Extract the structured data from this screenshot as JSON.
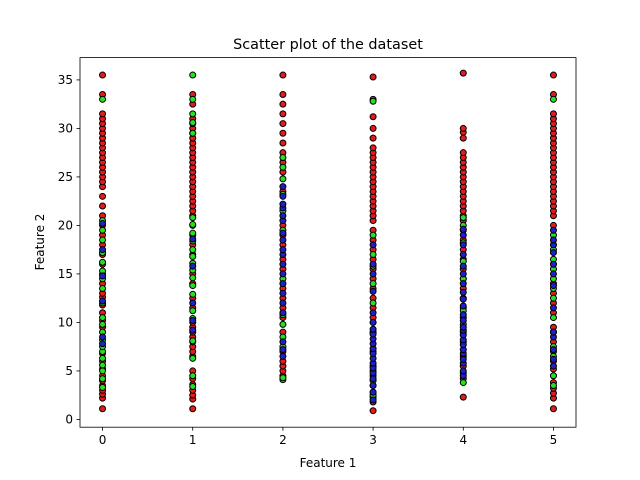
{
  "chart_data": {
    "type": "scatter",
    "title": "Scatter plot of the dataset",
    "xlabel": "Feature 1",
    "ylabel": "Feature 2",
    "xlim": [
      -0.25,
      5.25
    ],
    "ylim": [
      -0.8,
      37.3
    ],
    "xticks": [
      0,
      1,
      2,
      3,
      4,
      5
    ],
    "yticks": [
      0,
      5,
      10,
      15,
      20,
      25,
      30,
      35
    ],
    "grid": false,
    "legend": "none",
    "colors": {
      "red": "#e41a1c",
      "green": "#22e022",
      "blue": "#1f1fc8"
    },
    "groups": [
      {
        "x": 0,
        "red": [
          1.1,
          2.2,
          2.6,
          3.0,
          3.5,
          4.0,
          4.5,
          5.2,
          6.0,
          6.8,
          9.5,
          10.2,
          11.0,
          11.8,
          12.6,
          13.0,
          14.0,
          15.0,
          16.0,
          17.0,
          18.0,
          19.0,
          20.0,
          21.0,
          22.0,
          23.0,
          24.0,
          24.5,
          25.0,
          25.5,
          26.0,
          26.5,
          27.0,
          27.5,
          28.0,
          28.5,
          29.0,
          29.5,
          30.0,
          30.5,
          31.0,
          31.5,
          33.5,
          35.5
        ],
        "green": [
          3.3,
          4.2,
          5.0,
          5.6,
          6.3,
          7.0,
          7.5,
          8.2,
          9.0,
          9.8,
          10.5,
          12.0,
          13.5,
          14.5,
          15.3,
          16.2,
          17.2,
          18.5,
          19.5,
          20.5,
          33.0
        ],
        "blue": [
          7.8,
          8.5,
          12.2,
          14.8,
          17.5,
          20.2
        ]
      },
      {
        "x": 1,
        "red": [
          1.1,
          2.1,
          2.5,
          3.0,
          3.6,
          4.2,
          5.0,
          6.5,
          7.0,
          7.5,
          8.0,
          8.5,
          9.0,
          9.5,
          10.0,
          11.5,
          12.5,
          14.0,
          15.0,
          17.0,
          18.0,
          19.0,
          20.0,
          21.0,
          21.5,
          22.0,
          22.5,
          23.0,
          23.5,
          24.0,
          24.5,
          25.0,
          25.5,
          26.0,
          26.5,
          27.0,
          27.5,
          28.0,
          28.5,
          29.0,
          29.5,
          30.0,
          30.5,
          31.0,
          32.5,
          33.5
        ],
        "green": [
          3.4,
          4.5,
          6.3,
          8.1,
          10.4,
          11.2,
          12.9,
          13.8,
          14.6,
          15.4,
          16.1,
          16.8,
          17.5,
          18.4,
          19.2,
          20.1,
          20.8,
          29.5,
          30.6,
          31.5,
          33.0,
          35.5
        ],
        "blue": [
          9.2,
          10.2,
          12.0,
          15.8,
          18.6
        ]
      },
      {
        "x": 2,
        "red": [
          4.5,
          5.0,
          5.5,
          6.0,
          7.0,
          9.0,
          10.5,
          11.5,
          12.5,
          13.5,
          15.5,
          16.5,
          18.0,
          19.0,
          20.0,
          23.5,
          25.5,
          26.5,
          27.5,
          28.5,
          29.5,
          30.5,
          31.5,
          32.5,
          33.5,
          35.5
        ],
        "green": [
          4.1,
          4.3,
          7.5,
          8.5,
          9.8,
          10.8,
          14.5,
          19.5,
          21.5,
          23.2,
          24.8,
          26.0,
          27.0
        ],
        "blue": [
          6.5,
          7.2,
          8.0,
          11.0,
          12.0,
          13.0,
          14.0,
          15.0,
          16.0,
          17.0,
          17.5,
          18.5,
          19.2,
          20.5,
          21.0,
          21.8,
          22.2,
          23.0,
          24.0
        ]
      },
      {
        "x": 3,
        "red": [
          0.9,
          1.8,
          2.3,
          2.8,
          3.5,
          4.5,
          5.5,
          7.0,
          9.0,
          10.5,
          11.5,
          12.5,
          13.5,
          14.5,
          15.5,
          16.5,
          17.5,
          18.5,
          19.5,
          20.5,
          21.0,
          21.5,
          22.0,
          22.5,
          23.0,
          23.5,
          24.0,
          24.5,
          25.0,
          25.5,
          26.0,
          26.5,
          27.0,
          27.5,
          28.0,
          29.0,
          30.0,
          31.2,
          33.0,
          35.3
        ],
        "green": [
          2.5,
          4.0,
          5.0,
          10.0,
          12.0,
          14.0,
          15.8,
          17.0,
          19.0,
          32.8
        ],
        "blue": [
          2.0,
          2.8,
          3.5,
          4.2,
          4.8,
          5.3,
          5.8,
          6.3,
          6.8,
          7.3,
          7.8,
          8.3,
          8.8,
          9.3,
          10.0,
          11.0,
          13.2,
          15.0,
          16.0,
          18.0
        ]
      },
      {
        "x": 4,
        "red": [
          2.3,
          4.2,
          4.8,
          5.5,
          6.5,
          8.0,
          9.0,
          10.5,
          11.5,
          12.5,
          13.5,
          14.5,
          15.5,
          16.5,
          17.5,
          18.5,
          19.5,
          20.5,
          21.0,
          21.5,
          22.0,
          22.5,
          23.0,
          23.5,
          24.0,
          24.5,
          25.0,
          25.5,
          26.0,
          26.5,
          27.0,
          27.5,
          29.0,
          29.6,
          30.0,
          35.7
        ],
        "green": [
          3.8,
          9.8,
          11.2,
          14.5,
          16.3,
          18.2,
          20.0,
          20.8
        ],
        "blue": [
          4.5,
          5.0,
          5.8,
          6.2,
          6.8,
          7.2,
          7.7,
          8.2,
          8.7,
          9.2,
          9.5,
          10.2,
          10.8,
          11.7,
          12.4,
          13.1,
          14.0,
          15.0,
          15.8,
          17.0,
          18.0,
          19.0,
          19.6
        ]
      },
      {
        "x": 5,
        "red": [
          1.1,
          2.2,
          2.7,
          3.2,
          3.8,
          4.5,
          5.2,
          6.0,
          7.0,
          8.0,
          9.5,
          11.0,
          12.0,
          13.0,
          14.0,
          16.0,
          18.0,
          20.0,
          21.0,
          21.5,
          22.0,
          22.5,
          23.0,
          23.5,
          24.0,
          24.5,
          25.0,
          25.5,
          26.0,
          26.5,
          27.0,
          27.5,
          28.0,
          28.5,
          29.0,
          29.5,
          30.0,
          30.5,
          31.0,
          31.5,
          33.5,
          35.5
        ],
        "green": [
          3.5,
          4.5,
          6.5,
          7.5,
          9.0,
          10.5,
          12.5,
          13.5,
          14.5,
          15.5,
          16.5,
          17.5,
          19.0,
          33.0
        ],
        "blue": [
          5.5,
          6.2,
          7.2,
          8.5,
          9.0,
          11.5,
          13.8,
          15.0,
          16.0,
          17.2,
          18.0,
          18.5,
          19.5
        ]
      }
    ]
  }
}
